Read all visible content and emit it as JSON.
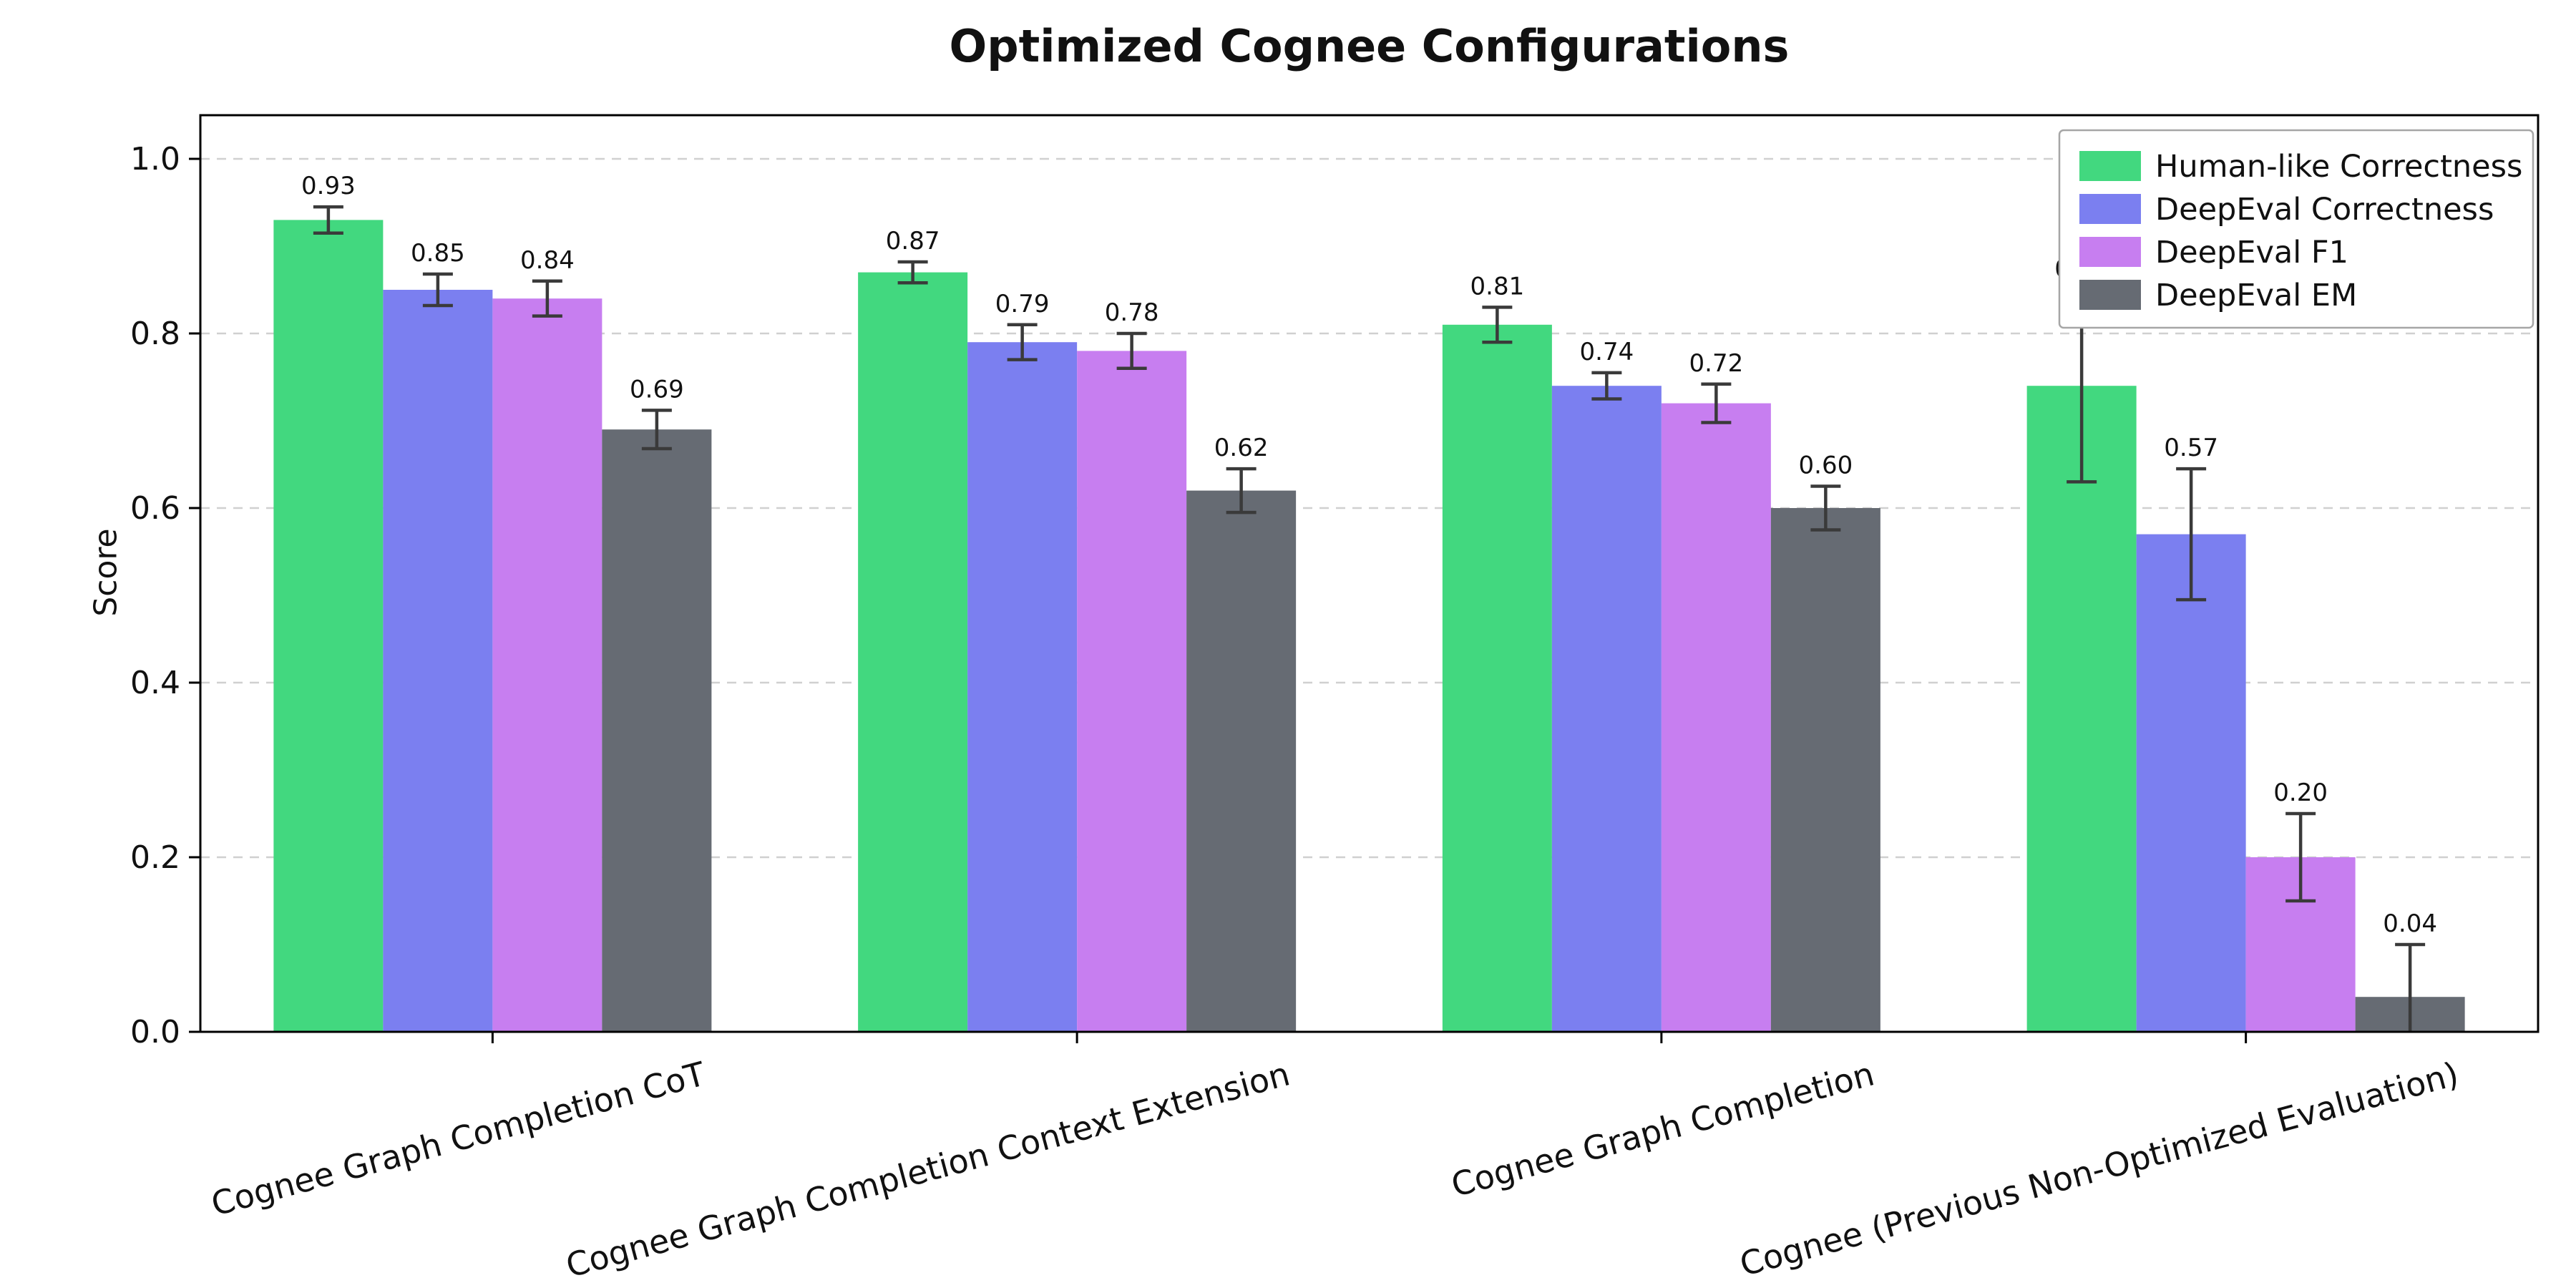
{
  "title": "Optimized Cognee Configurations",
  "chart_data": {
    "type": "bar",
    "title": "Optimized Cognee Configurations",
    "xlabel": "",
    "ylabel": "Score",
    "ylim": [
      0.0,
      1.05
    ],
    "yticks": [
      0.0,
      0.2,
      0.4,
      0.6,
      0.8,
      1.0
    ],
    "grid": "horizontal-dashed",
    "legend_position": "upper-right",
    "error_bars": true,
    "colors": {
      "error_bar": "#3a3a3a",
      "gridline": "#d0d0d0",
      "axis": "#000000",
      "legend_border": "#a6a6a6"
    },
    "categories": [
      "Cognee Graph Completion CoT",
      "Cognee Graph Completion Context Extension",
      "Cognee Graph Completion",
      "Cognee (Previous Non-Optimized Evaluation)"
    ],
    "series": [
      {
        "name": "Human-like Correctness",
        "color": "#42d87f",
        "values": [
          0.93,
          0.87,
          0.81,
          0.74
        ],
        "errors": [
          0.015,
          0.012,
          0.02,
          0.11
        ]
      },
      {
        "name": "DeepEval Correctness",
        "color": "#7b7ff0",
        "values": [
          0.85,
          0.79,
          0.74,
          0.57
        ],
        "errors": [
          0.018,
          0.02,
          0.015,
          0.075
        ]
      },
      {
        "name": "DeepEval F1",
        "color": "#c77ef0",
        "values": [
          0.84,
          0.78,
          0.72,
          0.2
        ],
        "errors": [
          0.02,
          0.02,
          0.022,
          0.05
        ]
      },
      {
        "name": "DeepEval EM",
        "color": "#666b73",
        "values": [
          0.69,
          0.62,
          0.6,
          0.04
        ],
        "errors": [
          0.022,
          0.025,
          0.025,
          0.06
        ]
      }
    ]
  }
}
